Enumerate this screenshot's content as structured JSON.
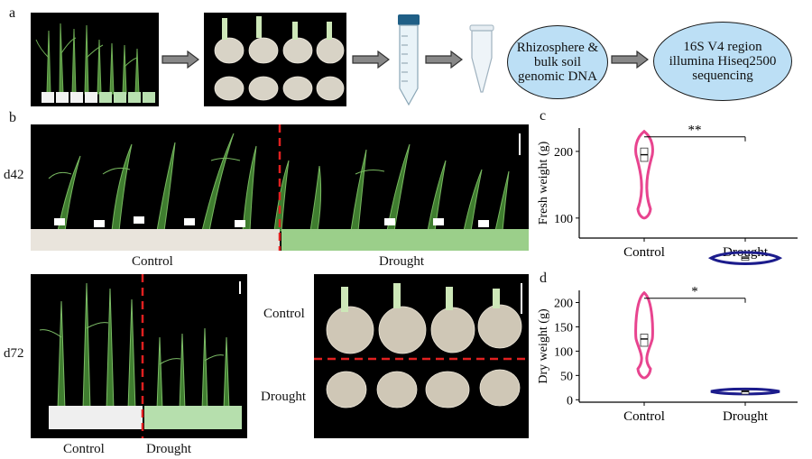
{
  "panels": {
    "a": "a",
    "b": "b",
    "c": "c",
    "d": "d"
  },
  "workflow": {
    "step1": "Rhizosphere &\nbulk soil\ngenomic DNA",
    "step2": "16S V4 region\nillumina Hiseq2500\nsequencing"
  },
  "panel_b": {
    "day42": "d42",
    "day72": "d72",
    "control": "Control",
    "drought": "Drought"
  },
  "colors": {
    "control": "#e8448f",
    "drought": "#1c1c8c",
    "divider": "#e02020",
    "ellipse": "#bcdff5"
  },
  "chart_data": [
    {
      "type": "violin",
      "panel": "c",
      "ylabel": "Fresh weight (g)",
      "categories": [
        "Control",
        "Drought"
      ],
      "yticks": [
        100,
        200
      ],
      "ylim": [
        70,
        235
      ],
      "series": [
        {
          "category": "Control",
          "min": 100,
          "max": 230,
          "median": 195,
          "q1": 185,
          "q3": 205
        },
        {
          "category": "Drought",
          "min": 30,
          "max": 50,
          "median": 40,
          "q1": 38,
          "q3": 42
        }
      ],
      "significance": "**"
    },
    {
      "type": "violin",
      "panel": "d",
      "ylabel": "Dry weight (g)",
      "categories": [
        "Control",
        "Drought"
      ],
      "yticks": [
        0,
        50,
        100,
        150,
        200
      ],
      "ylim": [
        -5,
        225
      ],
      "series": [
        {
          "category": "Control",
          "min": 45,
          "max": 220,
          "median": 125,
          "q1": 110,
          "q3": 135
        },
        {
          "category": "Drought",
          "min": 12,
          "max": 22,
          "median": 17,
          "q1": 15,
          "q3": 19
        }
      ],
      "significance": "*"
    }
  ]
}
